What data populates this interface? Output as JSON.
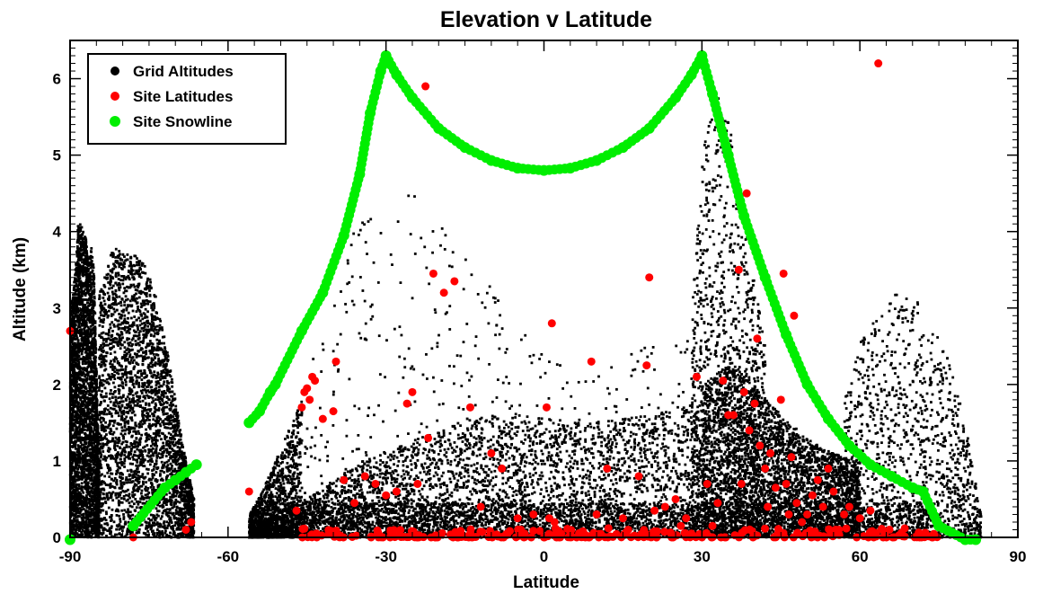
{
  "chart_data": {
    "type": "scatter",
    "title": "Elevation v Latitude",
    "xlabel": "Latitude",
    "ylabel": "Altitude (km)",
    "xlim": [
      -90,
      90
    ],
    "ylim": [
      0,
      6.5
    ],
    "xticks": [
      -90,
      -60,
      -30,
      0,
      30,
      60,
      90
    ],
    "yticks": [
      0,
      1,
      2,
      3,
      4,
      5,
      6
    ],
    "grid": false,
    "legend_position": "top-left",
    "series": [
      {
        "name": "Grid Altitudes",
        "color": "#000000",
        "marker": "dot",
        "density_bands": [
          {
            "x": [
              -90,
              -84.5
            ],
            "ymin": 0,
            "ymax": [
              3.0,
              3.2,
              3.5,
              4.1,
              4.1,
              4.0,
              3.9,
              3.6,
              3.8,
              3.5,
              2.2,
              0.9
            ],
            "density": "solid"
          },
          {
            "x": [
              -84.5,
              -66.5
            ],
            "ymin": 0,
            "ymax": [
              3.2,
              3.8,
              3.7,
              3.7,
              3.3,
              2.5,
              1.4,
              0.5
            ],
            "density": "solid"
          },
          {
            "x": [
              -56,
              -46
            ],
            "ymin": 0,
            "ymax": [
              0.3,
              0.6,
              1.0,
              1.4,
              1.8
            ],
            "density": "medium"
          },
          {
            "x": [
              -46,
              30
            ],
            "ymin": 0,
            "ymax": [
              2.0,
              4.3,
              4.6,
              3.6,
              2.7,
              2.2,
              2.5,
              3.0
            ],
            "density": "sparse"
          },
          {
            "x": [
              -56,
              30
            ],
            "ymin": 0,
            "ymax": [
              0.1,
              0.5,
              1.0,
              1.3,
              1.6,
              1.6,
              1.5,
              1.6,
              1.8
            ],
            "density": "solid"
          },
          {
            "x": [
              28,
              42
            ],
            "ymin": 0,
            "ymax": [
              3.0,
              5.2,
              5.8,
              5.5,
              4.5,
              3.5,
              2.5
            ],
            "density": "medium"
          },
          {
            "x": [
              30,
              60
            ],
            "ymin": 0,
            "ymax": [
              2.0,
              2.3,
              2.0,
              1.6,
              1.3,
              1.1,
              1.0
            ],
            "density": "solid"
          },
          {
            "x": [
              57,
              83
            ],
            "ymin": 0,
            "ymax": [
              1.8,
              2.6,
              2.9,
              3.2,
              3.2,
              2.8,
              2.4,
              1.6,
              0.3
            ],
            "density": "medium"
          }
        ]
      },
      {
        "name": "Site Latitudes",
        "color": "#ff0000",
        "marker": "circle",
        "points": [
          [
            -90,
            2.7
          ],
          [
            -78,
            0
          ],
          [
            -68,
            0.1
          ],
          [
            -67,
            0.2
          ],
          [
            -56,
            0.6
          ],
          [
            -47,
            0.35
          ],
          [
            -45.5,
            1.9
          ],
          [
            -45,
            1.95
          ],
          [
            -44.5,
            1.8
          ],
          [
            -44,
            2.1
          ],
          [
            -43.5,
            2.05
          ],
          [
            -46,
            1.7
          ],
          [
            -42,
            1.55
          ],
          [
            -40,
            1.65
          ],
          [
            -39.5,
            2.3
          ],
          [
            -38,
            0.75
          ],
          [
            -36,
            0.45
          ],
          [
            -34,
            0.8
          ],
          [
            -32,
            0.7
          ],
          [
            -30,
            0.55
          ],
          [
            -28,
            0.6
          ],
          [
            -26,
            1.75
          ],
          [
            -25,
            1.9
          ],
          [
            -24,
            0.7
          ],
          [
            -22,
            1.3
          ],
          [
            -22.5,
            5.9
          ],
          [
            -21,
            3.45
          ],
          [
            -19,
            3.2
          ],
          [
            -17,
            3.35
          ],
          [
            -14,
            1.7
          ],
          [
            -12,
            0.4
          ],
          [
            -10,
            1.1
          ],
          [
            -8,
            0.9
          ],
          [
            -5,
            0.25
          ],
          [
            -2,
            0.3
          ],
          [
            0,
            0
          ],
          [
            1,
            0.25
          ],
          [
            2,
            0.2
          ],
          [
            0.5,
            1.7
          ],
          [
            1.5,
            2.8
          ],
          [
            9,
            2.3
          ],
          [
            10,
            0.3
          ],
          [
            12,
            0.9
          ],
          [
            15,
            0.25
          ],
          [
            16,
            0.1
          ],
          [
            18,
            0.8
          ],
          [
            19.5,
            2.25
          ],
          [
            20,
            3.4
          ],
          [
            21,
            0.35
          ],
          [
            23,
            0.4
          ],
          [
            25,
            0.5
          ],
          [
            26,
            0.15
          ],
          [
            27,
            0.25
          ],
          [
            28,
            0.05
          ],
          [
            29,
            2.1
          ],
          [
            31,
            0.7
          ],
          [
            32,
            0.15
          ],
          [
            33,
            0.45
          ],
          [
            34,
            2.05
          ],
          [
            35,
            1.6
          ],
          [
            36,
            1.6
          ],
          [
            37,
            3.5
          ],
          [
            37.5,
            0.7
          ],
          [
            38,
            1.9
          ],
          [
            38.5,
            4.5
          ],
          [
            39,
            1.4
          ],
          [
            40,
            1.75
          ],
          [
            40.5,
            2.6
          ],
          [
            41,
            1.2
          ],
          [
            42,
            0.9
          ],
          [
            42.5,
            0.4
          ],
          [
            43,
            1.1
          ],
          [
            44,
            0.65
          ],
          [
            45,
            1.8
          ],
          [
            45.5,
            3.45
          ],
          [
            46,
            0.7
          ],
          [
            46.5,
            0.3
          ],
          [
            47,
            1.05
          ],
          [
            47.5,
            2.9
          ],
          [
            48,
            0.45
          ],
          [
            49,
            0.2
          ],
          [
            50,
            0.3
          ],
          [
            51,
            0.55
          ],
          [
            52,
            0.75
          ],
          [
            53,
            0.4
          ],
          [
            54,
            0.9
          ],
          [
            55,
            0.6
          ],
          [
            56,
            0.1
          ],
          [
            57,
            0.3
          ],
          [
            58,
            0.4
          ],
          [
            60,
            0.25
          ],
          [
            62,
            0.35
          ],
          [
            63.5,
            6.2
          ]
        ],
        "baseline_cluster_x": [
          -46,
          75
        ]
      },
      {
        "name": "Site Snowline",
        "color": "#00ee00",
        "marker": "circle",
        "points": [
          [
            -90,
            -0.03
          ],
          [
            -78,
            0.15
          ],
          [
            -72,
            0.65
          ],
          [
            -70,
            0.75
          ],
          [
            -68,
            0.85
          ],
          [
            -66,
            0.95
          ],
          [
            -56,
            1.5
          ],
          [
            -54,
            1.65
          ],
          [
            -52,
            1.9
          ],
          [
            -51,
            2.0
          ],
          [
            -46,
            2.7
          ],
          [
            -42,
            3.2
          ],
          [
            -38,
            3.95
          ],
          [
            -35,
            4.75
          ],
          [
            -33,
            5.55
          ],
          [
            -31,
            6.1
          ],
          [
            -30,
            6.3
          ],
          [
            -28,
            6.05
          ],
          [
            -25,
            5.75
          ],
          [
            -20,
            5.35
          ],
          [
            -15,
            5.1
          ],
          [
            -10,
            4.93
          ],
          [
            -5,
            4.83
          ],
          [
            0,
            4.8
          ],
          [
            5,
            4.83
          ],
          [
            10,
            4.93
          ],
          [
            15,
            5.1
          ],
          [
            20,
            5.35
          ],
          [
            25,
            5.75
          ],
          [
            28,
            6.05
          ],
          [
            30,
            6.3
          ],
          [
            32,
            5.8
          ],
          [
            35,
            5.0
          ],
          [
            38,
            4.2
          ],
          [
            42,
            3.4
          ],
          [
            46,
            2.65
          ],
          [
            50,
            2.0
          ],
          [
            54,
            1.55
          ],
          [
            58,
            1.2
          ],
          [
            62,
            0.95
          ],
          [
            66,
            0.8
          ],
          [
            70,
            0.65
          ],
          [
            72,
            0.6
          ],
          [
            75,
            0.15
          ],
          [
            80,
            -0.03
          ],
          [
            82,
            -0.03
          ]
        ]
      }
    ],
    "legend": [
      {
        "label": "Grid Altitudes",
        "color": "#000000"
      },
      {
        "label": "Site Latitudes",
        "color": "#ff0000"
      },
      {
        "label": "Site Snowline",
        "color": "#00ee00"
      }
    ]
  }
}
